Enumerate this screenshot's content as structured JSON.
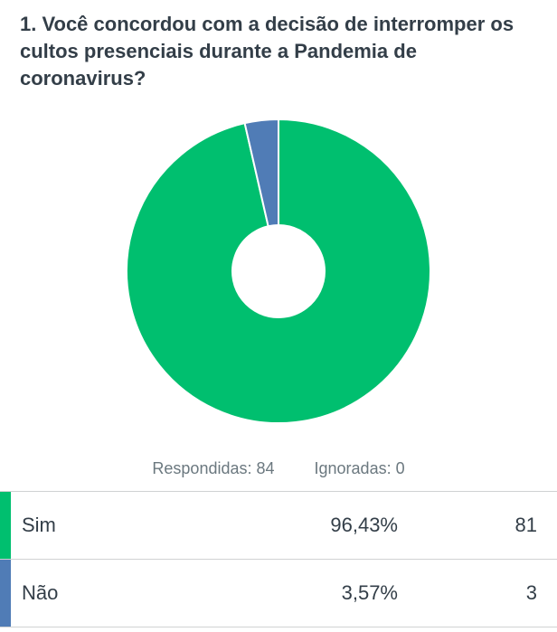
{
  "question": {
    "title": "1. Você concordou com a decisão de interromper os cultos presenciais durante a Pandemia de coronavirus?"
  },
  "summary": {
    "answered": "Respondidas: 84",
    "skipped": "Ignoradas: 0"
  },
  "chart_data": {
    "type": "pie",
    "style": "donut",
    "categories": [
      "Sim",
      "Não"
    ],
    "values": [
      96.43,
      3.57
    ],
    "counts": [
      81,
      3
    ],
    "colors": [
      "#00bf6f",
      "#507cb6"
    ],
    "legend": "none"
  },
  "responses": [
    {
      "label": "Sim",
      "percent": "96,43%",
      "count": "81",
      "color": "#00bf6f"
    },
    {
      "label": "Não",
      "percent": "3,57%",
      "count": "3",
      "color": "#507cb6"
    }
  ]
}
